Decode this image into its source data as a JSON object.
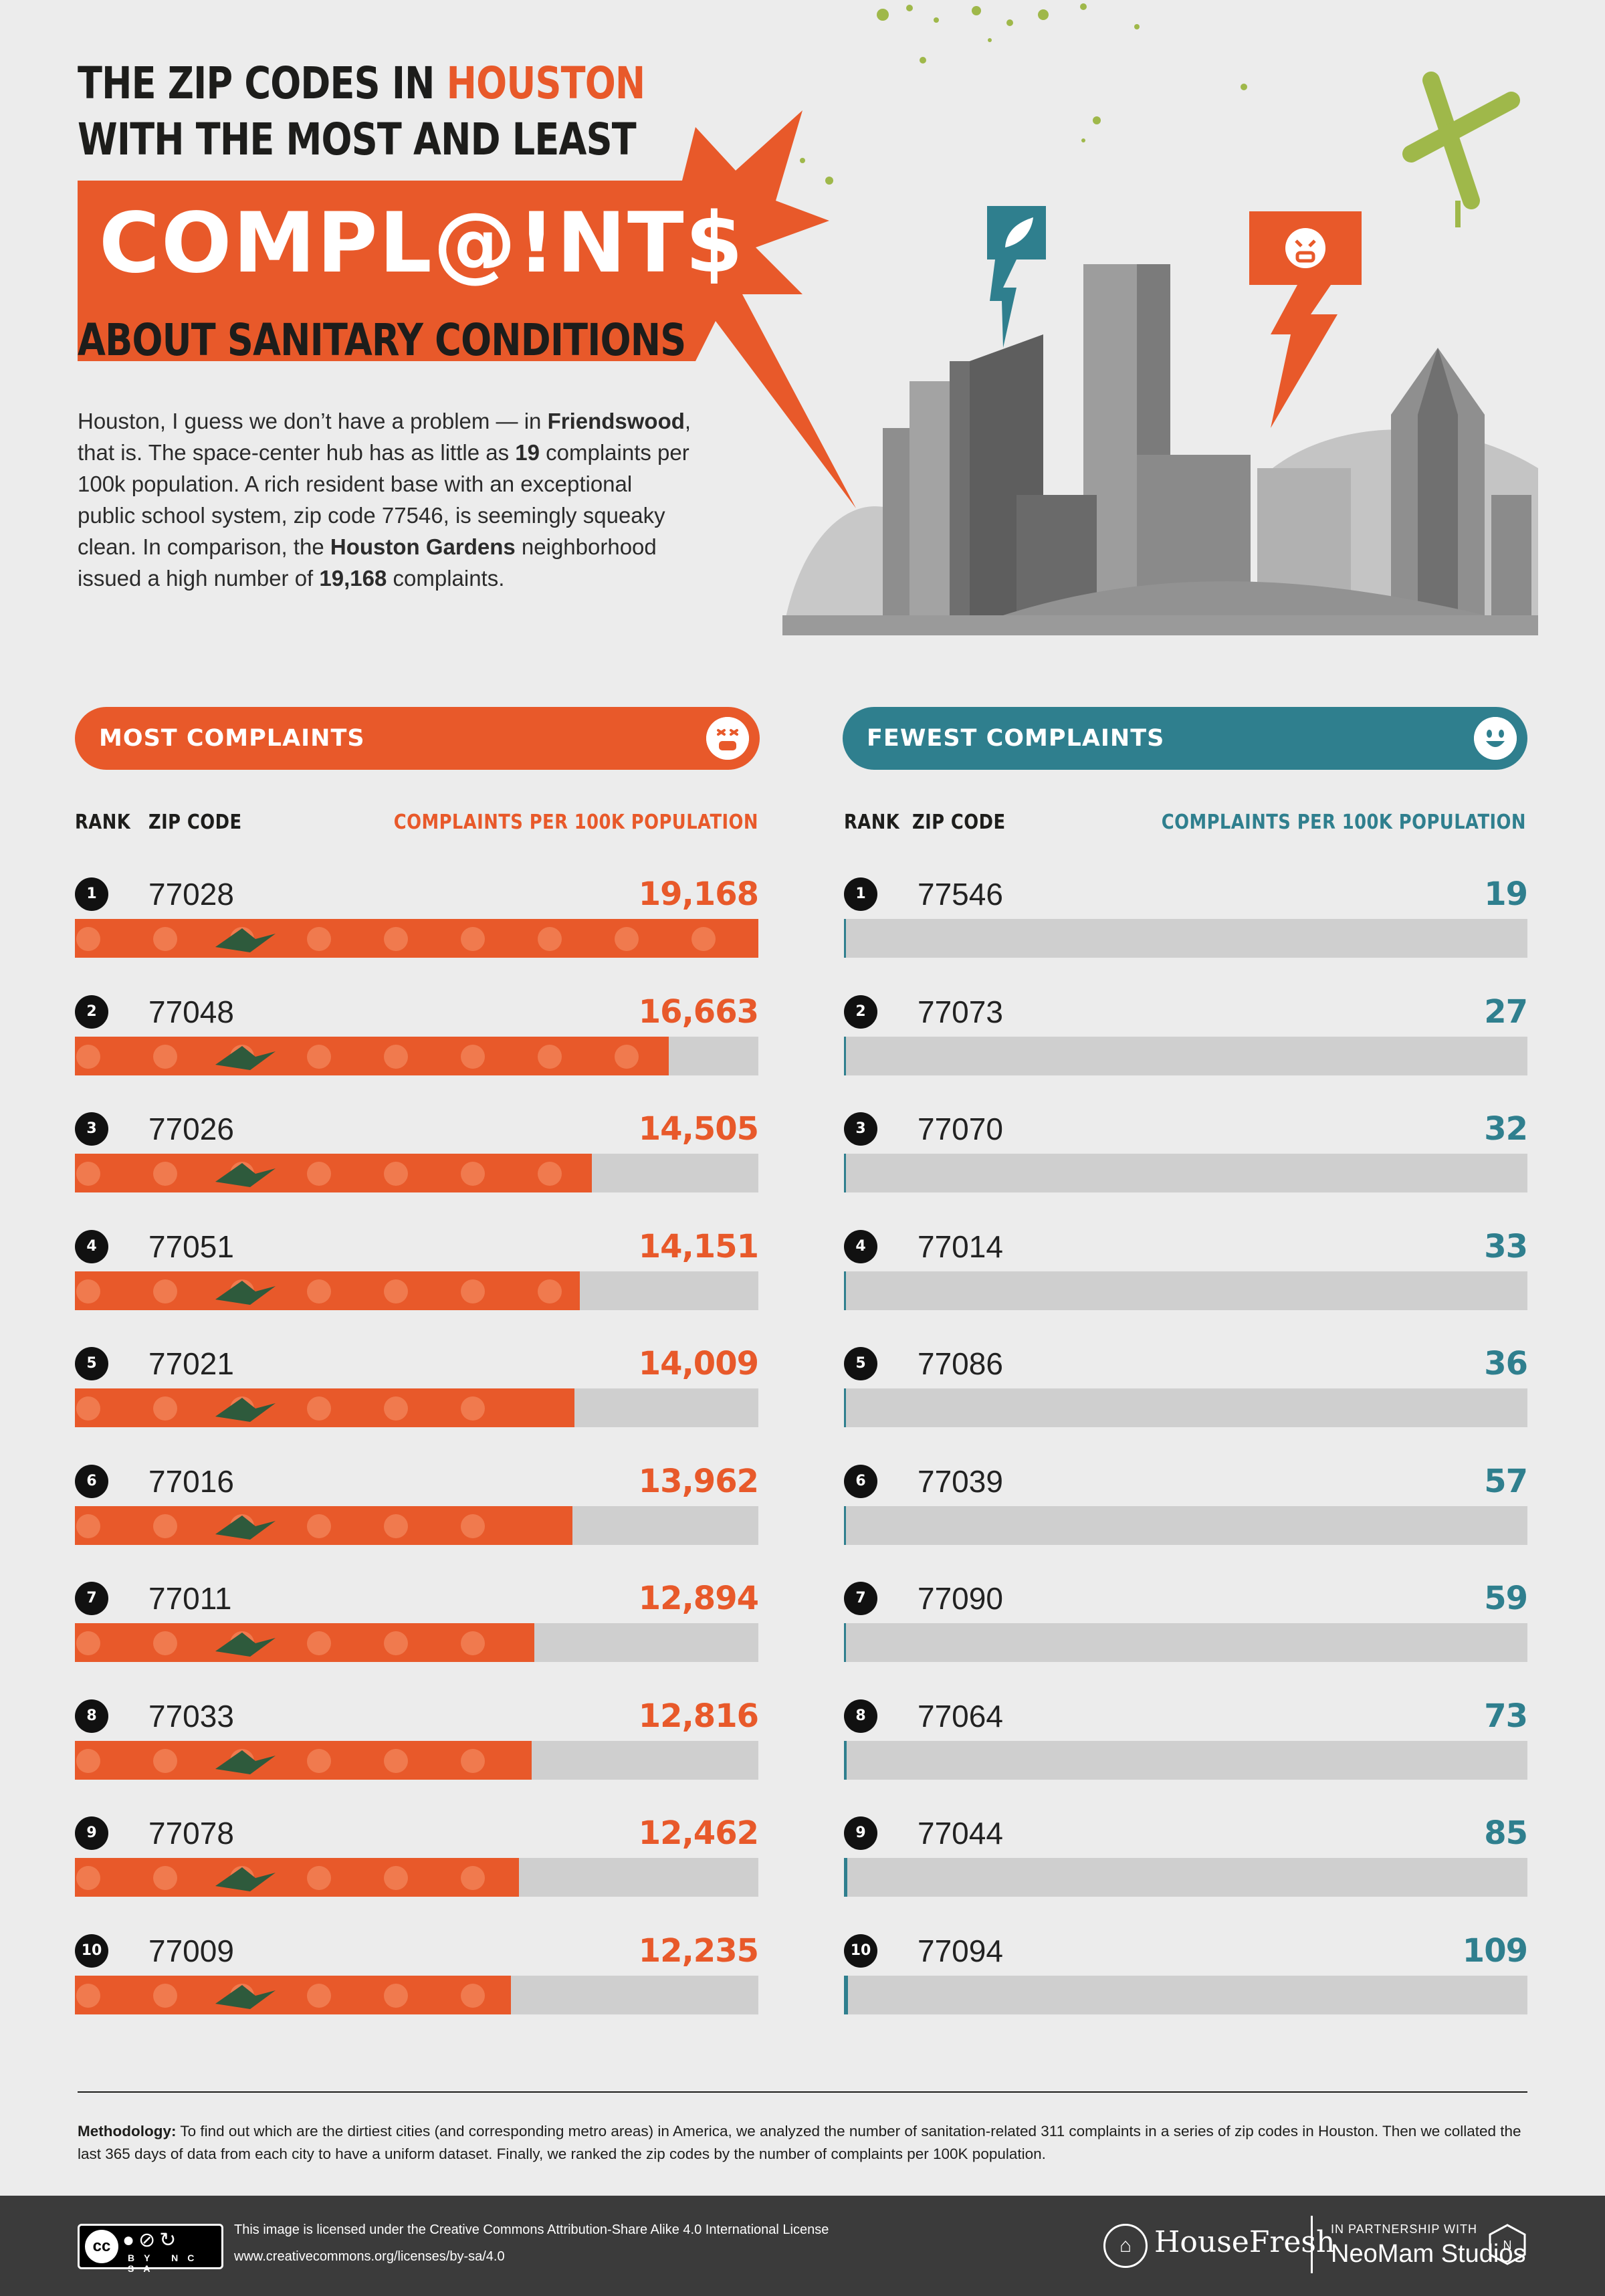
{
  "header": {
    "title_line1_prefix": "THE ZIP CODES IN ",
    "title_line1_accent": "HOUSTON",
    "title_line2": "WITH THE MOST AND LEAST",
    "title_banner_word": "COMPL@!NT$",
    "title_line3": "ABOUT SANITARY CONDITIONS"
  },
  "intro": {
    "p1": "Houston, I guess we don’t have a problem — in ",
    "b1": "Friendswood",
    "p2": ", that is. The space-center hub has as little as ",
    "b2": "19",
    "p3": " complaints per 100k population. A rich resident base with an exceptional public school system, zip code 77546, is seemingly squeaky clean. In comparison, the ",
    "b3": "Houston Gardens",
    "p4": " neighborhood issued a high number of ",
    "b4": "19,168",
    "p5": " complaints."
  },
  "columns": {
    "rank": "RANK",
    "zip": "ZIP CODE",
    "metric": "COMPLAINTS PER 100K POPULATION"
  },
  "colors": {
    "accent_orange": "#e8592a",
    "accent_teal": "#2f7f8e",
    "dark_green": "#2e5a3c",
    "track_gray": "#cfcfcf"
  },
  "icons": [
    "angry-face-icon",
    "smiley-face-icon",
    "leaf-icon",
    "sick-face-icon"
  ],
  "chart_data": [
    {
      "type": "bar",
      "title": "MOST COMPLAINTS",
      "xlabel": "ZIP CODE",
      "ylabel": "COMPLAINTS PER 100K POPULATION",
      "ylim": [
        0,
        19168
      ],
      "ranks": [
        "1",
        "2",
        "3",
        "4",
        "5",
        "6",
        "7",
        "8",
        "9",
        "10"
      ],
      "categories": [
        "77028",
        "77048",
        "77026",
        "77051",
        "77021",
        "77016",
        "77011",
        "77033",
        "77078",
        "77009"
      ],
      "values": [
        19168,
        16663,
        14505,
        14151,
        14009,
        13962,
        12894,
        12816,
        12462,
        12235
      ],
      "labels": [
        "19,168",
        "16,663",
        "14,505",
        "14,151",
        "14,009",
        "13,962",
        "12,894",
        "12,816",
        "12,462",
        "12,235"
      ]
    },
    {
      "type": "bar",
      "title": "FEWEST COMPLAINTS",
      "xlabel": "ZIP CODE",
      "ylabel": "COMPLAINTS PER 100K POPULATION",
      "ylim": [
        0,
        19168
      ],
      "ranks": [
        "1",
        "2",
        "3",
        "4",
        "5",
        "6",
        "7",
        "8",
        "9",
        "10"
      ],
      "categories": [
        "77546",
        "77073",
        "77070",
        "77014",
        "77086",
        "77039",
        "77090",
        "77064",
        "77044",
        "77094"
      ],
      "values": [
        19,
        27,
        32,
        33,
        36,
        57,
        59,
        73,
        85,
        109
      ],
      "labels": [
        "19",
        "27",
        "32",
        "33",
        "36",
        "57",
        "59",
        "73",
        "85",
        "109"
      ]
    }
  ],
  "methodology": {
    "label": "Methodology:",
    "text": " To find out which are the dirtiest cities (and corresponding metro areas) in America, we analyzed the number of sanitation-related 311 complaints in a series of zip codes in Houston. Then we collated the last 365 days of data from each city to have a uniform dataset. Finally, we ranked the zip codes by the number of complaints per 100K population."
  },
  "footer": {
    "cc_logo": "cc",
    "cc_tags": "BY NC SA",
    "license_line1": "This image is licensed under the Creative Commons Attribution-Share Alike 4.0  International License",
    "license_line2": "www.creativecommons.org/licenses/by-sa/4.0",
    "brand": "HouseFresh",
    "partner_label": "IN PARTNERSHIP WITH",
    "partner_name": "NeoMam Studios"
  }
}
